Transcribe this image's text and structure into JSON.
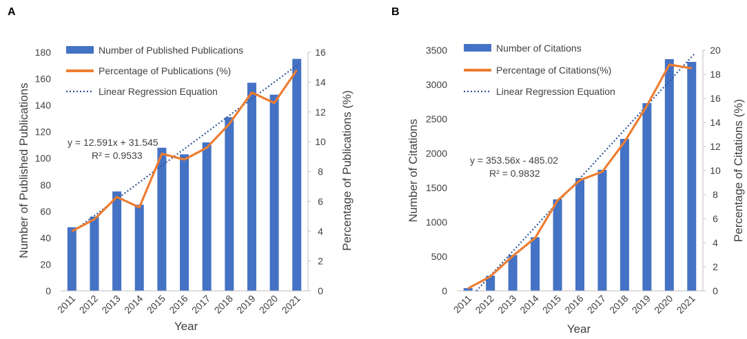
{
  "chart_data": [
    {
      "type": "bar",
      "panel_label": "A",
      "categories": [
        "2011",
        "2012",
        "2013",
        "2014",
        "2015",
        "2016",
        "2017",
        "2018",
        "2019",
        "2020",
        "2021"
      ],
      "series": [
        {
          "name": "Number of Published Publications",
          "kind": "bar",
          "axis": "left",
          "values": [
            48,
            56,
            75,
            65,
            108,
            103,
            112,
            131,
            157,
            148,
            175
          ]
        },
        {
          "name": "Percentage of Publications (%)",
          "kind": "line",
          "axis": "right",
          "values": [
            4.0,
            4.8,
            6.3,
            5.6,
            9.2,
            8.8,
            9.6,
            11.2,
            13.3,
            12.6,
            14.8
          ]
        },
        {
          "name": "Linear Regression Equation",
          "kind": "trend",
          "axis": "left",
          "slope": 12.591,
          "intercept": 31.545
        }
      ],
      "equation": "y = 12.591x + 31.545",
      "r_squared": "R² = 0.9533",
      "xlabel": "Year",
      "ylabel": "Number of Published Publications",
      "ylabel_right": "Percentage of Publications (%)",
      "ylim": [
        0,
        180
      ],
      "ylim_right": [
        0,
        16
      ],
      "yticks": [
        "0",
        "20",
        "40",
        "60",
        "80",
        "100",
        "120",
        "140",
        "160",
        "180"
      ],
      "yticks_right": [
        "0",
        "2",
        "4",
        "6",
        "8",
        "10",
        "12",
        "14",
        "16"
      ]
    },
    {
      "type": "bar",
      "panel_label": "B",
      "categories": [
        "2011",
        "2012",
        "2013",
        "2014",
        "2015",
        "2016",
        "2017",
        "2018",
        "2019",
        "2020",
        "2021"
      ],
      "series": [
        {
          "name": "Number of Citations",
          "kind": "bar",
          "axis": "left",
          "values": [
            40,
            220,
            520,
            780,
            1330,
            1640,
            1760,
            2210,
            2730,
            3370,
            3330
          ]
        },
        {
          "name": "Percentage of Citations(%)",
          "kind": "line",
          "axis": "right",
          "values": [
            0.2,
            1.2,
            2.9,
            4.4,
            7.5,
            9.2,
            9.9,
            12.4,
            15.4,
            18.8,
            18.5
          ]
        },
        {
          "name": "Linear Regression Equation",
          "kind": "trend",
          "axis": "left",
          "slope": 353.56,
          "intercept": -485.02
        }
      ],
      "equation": "y = 353.56x - 485.02",
      "r_squared": "R² = 0.9832",
      "xlabel": "Year",
      "ylabel": "Number of Citations",
      "ylabel_right": "Percentage of Citations (%)",
      "ylim": [
        0,
        3500
      ],
      "ylim_right": [
        0,
        20
      ],
      "yticks": [
        "0",
        "500",
        "1000",
        "1500",
        "2000",
        "2500",
        "3000",
        "3500"
      ],
      "yticks_right": [
        "0",
        "2",
        "4",
        "6",
        "8",
        "10",
        "12",
        "14",
        "16",
        "18",
        "20"
      ]
    }
  ],
  "colors": {
    "bar": "#4472c4",
    "line": "#ed7d31",
    "trend": "#2f5597",
    "axis": "#bfbfbf",
    "text": "#404040"
  }
}
